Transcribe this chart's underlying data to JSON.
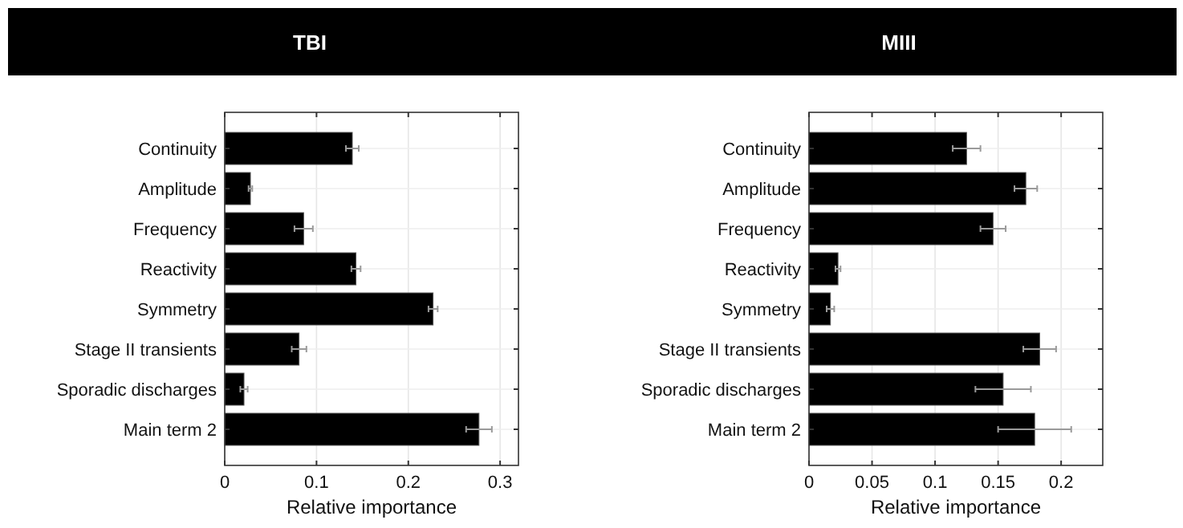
{
  "chart_data": [
    {
      "type": "bar",
      "orientation": "horizontal",
      "title": "TBI",
      "xlabel": "Relative importance",
      "categories": [
        "Continuity",
        "Amplitude",
        "Frequency",
        "Reactivity",
        "Symmetry",
        "Stage II transients",
        "Sporadic discharges",
        "Main term 2"
      ],
      "values": [
        0.139,
        0.028,
        0.086,
        0.143,
        0.227,
        0.081,
        0.021,
        0.277
      ],
      "errors": [
        0.007,
        0.002,
        0.01,
        0.005,
        0.005,
        0.008,
        0.004,
        0.014
      ],
      "color": "#000000",
      "xlim": [
        0,
        0.32
      ],
      "xticks": [
        0,
        0.1,
        0.2,
        0.3
      ],
      "grid": true
    },
    {
      "type": "bar",
      "orientation": "horizontal",
      "title": "MIII",
      "xlabel": "Relative importance",
      "categories": [
        "Continuity",
        "Amplitude",
        "Frequency",
        "Reactivity",
        "Symmetry",
        "Stage II transients",
        "Sporadic discharges",
        "Main term 2"
      ],
      "values": [
        0.125,
        0.172,
        0.146,
        0.023,
        0.017,
        0.183,
        0.154,
        0.179
      ],
      "errors": [
        0.011,
        0.009,
        0.01,
        0.002,
        0.003,
        0.013,
        0.022,
        0.029
      ],
      "color": "#000000",
      "xlim": [
        0,
        0.233
      ],
      "xticks": [
        0,
        0.05,
        0.1,
        0.15,
        0.2
      ],
      "grid": true
    }
  ]
}
